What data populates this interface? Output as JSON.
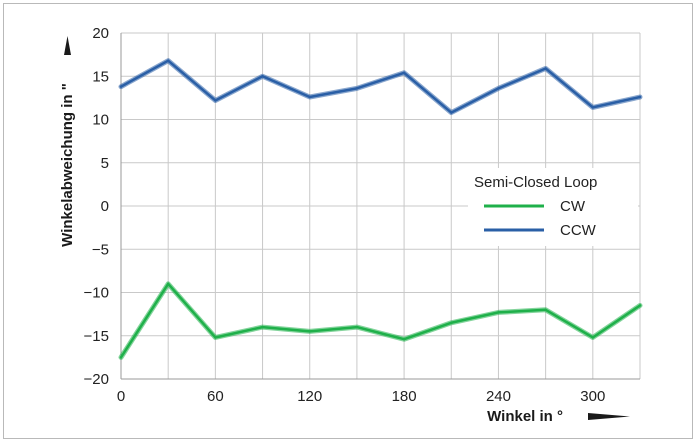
{
  "chart_data": {
    "type": "line",
    "xlabel": "Winkel in °",
    "ylabel": "Winkelabweichung in \"",
    "xlim": [
      0,
      330
    ],
    "ylim": [
      -20,
      20
    ],
    "xticks": [
      0,
      60,
      120,
      180,
      240,
      300
    ],
    "yticks": [
      20,
      15,
      10,
      5,
      0,
      -5,
      -10,
      -15,
      -20
    ],
    "grid": true,
    "legend_title": "Semi-Closed Loop",
    "legend_position": "center-right",
    "x": [
      0,
      30,
      60,
      90,
      120,
      150,
      180,
      210,
      240,
      270,
      300,
      330
    ],
    "series": [
      {
        "name": "CW",
        "color": "#1fb04a",
        "values": [
          -17.5,
          -9.0,
          -15.2,
          -14.0,
          -14.5,
          -14.0,
          -15.4,
          -13.5,
          -12.3,
          -12.0,
          -15.2,
          -11.5
        ]
      },
      {
        "name": "CCW",
        "color": "#2a5fa6",
        "values": [
          13.8,
          16.8,
          12.2,
          15.0,
          12.6,
          13.6,
          15.4,
          10.8,
          13.6,
          15.9,
          11.4,
          12.6
        ]
      }
    ]
  }
}
